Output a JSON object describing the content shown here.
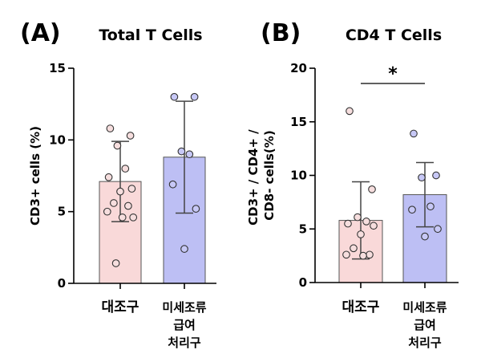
{
  "chart_data": [
    {
      "type": "bar",
      "panel_label": "(A)",
      "title": "Total T Cells",
      "ylabel": "CD3+ cells (%)",
      "ylim": [
        0,
        15
      ],
      "yticks": [
        "0",
        "5",
        "10",
        "15"
      ],
      "significance": "",
      "categories": [
        {
          "lines": [
            "대조구"
          ]
        },
        {
          "lines": [
            "미세조류",
            "급여",
            "처리구"
          ]
        }
      ],
      "series": [
        {
          "category_index": 0,
          "mean": 7.1,
          "sd": 2.8,
          "color": "#f9d9d9",
          "points": [
            10.8,
            10.3,
            9.6,
            8.0,
            7.4,
            6.6,
            6.4,
            5.6,
            5.4,
            5.0,
            4.6,
            4.6,
            1.4
          ]
        },
        {
          "category_index": 1,
          "mean": 8.8,
          "sd": 3.9,
          "color": "#bdbff4",
          "points": [
            13.0,
            13.0,
            9.2,
            9.0,
            6.9,
            5.2,
            2.4
          ]
        }
      ]
    },
    {
      "type": "bar",
      "panel_label": "(B)",
      "title": "CD4 T Cells",
      "ylabel": "CD3+ / CD4+ / CD8- cells(%)",
      "ylim": [
        0,
        20
      ],
      "yticks": [
        "0",
        "5",
        "10",
        "15",
        "20"
      ],
      "significance": "*",
      "categories": [
        {
          "lines": [
            "대조구"
          ]
        },
        {
          "lines": [
            "미세조류",
            "급여",
            "처리구"
          ]
        }
      ],
      "series": [
        {
          "category_index": 0,
          "mean": 5.8,
          "sd": 3.6,
          "color": "#f9d9d9",
          "points": [
            16.0,
            8.7,
            6.1,
            5.7,
            5.5,
            5.3,
            4.5,
            3.2,
            2.6,
            2.6,
            2.5
          ]
        },
        {
          "category_index": 1,
          "mean": 8.2,
          "sd": 3.0,
          "color": "#bdbff4",
          "points": [
            13.9,
            10.0,
            9.8,
            7.1,
            6.8,
            5.0,
            4.3
          ]
        }
      ]
    }
  ]
}
